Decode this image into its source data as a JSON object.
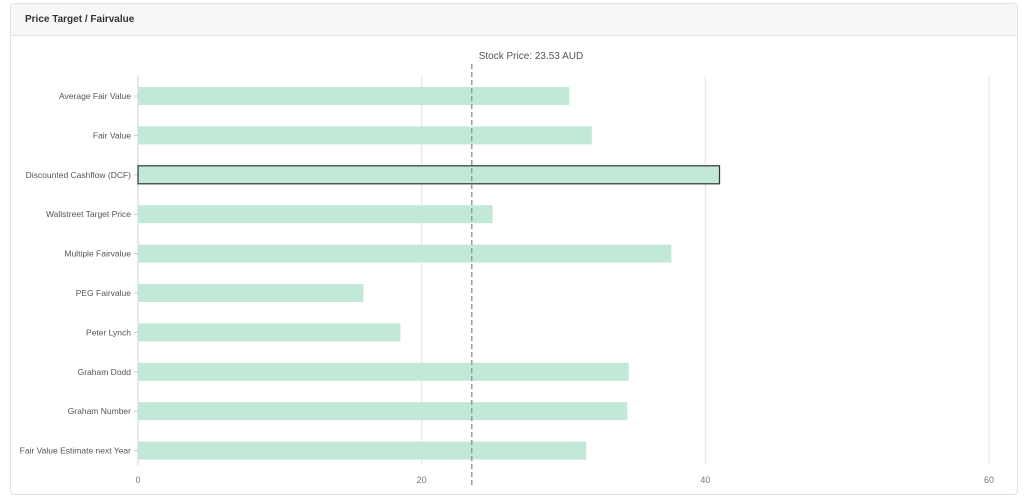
{
  "panel": {
    "title": "Price Target / Fairvalue"
  },
  "chart_data": {
    "type": "bar",
    "orientation": "horizontal",
    "title": "",
    "categories": [
      "Average Fair Value",
      "Fair Value",
      "Discounted Cashflow (DCF)",
      "Wallstreet Target Price",
      "Multiple Fairvalue",
      "PEG Fairvalue",
      "Peter Lynch",
      "Graham Dodd",
      "Graham Number",
      "Fair Value Estimate next Year"
    ],
    "values": [
      30.4,
      32.0,
      41.0,
      25.0,
      37.6,
      15.9,
      18.5,
      34.6,
      34.5,
      31.6
    ],
    "highlighted_category": "Discounted Cashflow (DCF)",
    "xlim": [
      0,
      60
    ],
    "xticks": [
      0,
      20,
      40,
      60
    ],
    "grid": true,
    "bar_color": "#c2e8d8",
    "reference_line": {
      "value": 23.53,
      "label": "Stock Price: 23.53 AUD"
    }
  }
}
